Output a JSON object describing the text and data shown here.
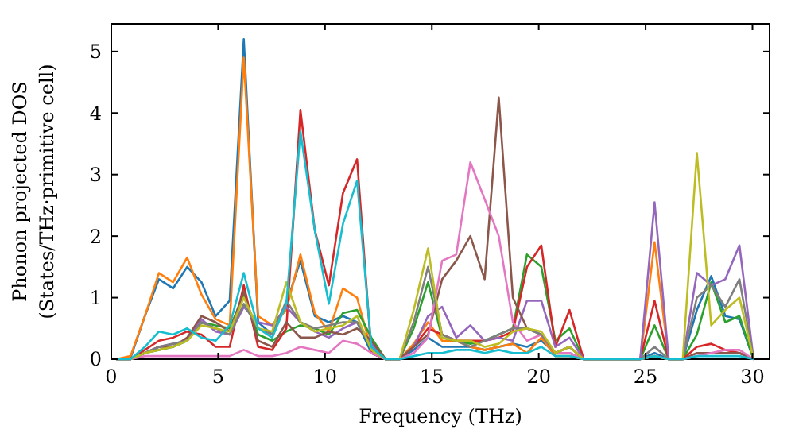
{
  "chart_data": {
    "type": "line",
    "xlabel": "Frequency (THz)",
    "ylabel": "Phonon projected DOS\n(States/THz·primitive cell)",
    "xlim": [
      0,
      30.8
    ],
    "ylim": [
      0,
      5.45
    ],
    "xticks": [
      0,
      5,
      10,
      15,
      20,
      25,
      30
    ],
    "yticks": [
      0,
      1,
      2,
      3,
      4,
      5
    ],
    "grid": false,
    "marker": "none",
    "line_style": "solid",
    "x": [
      0.24,
      0.9,
      1.57,
      2.23,
      2.89,
      3.55,
      4.22,
      4.88,
      5.54,
      6.2,
      6.87,
      7.53,
      8.19,
      8.85,
      9.52,
      10.18,
      10.84,
      11.5,
      12.17,
      12.83,
      13.49,
      14.15,
      14.82,
      15.48,
      16.14,
      16.8,
      17.47,
      18.13,
      18.79,
      19.45,
      20.12,
      20.78,
      21.44,
      22.1,
      22.77,
      23.43,
      24.09,
      24.75,
      25.42,
      26.08,
      26.74,
      27.4,
      28.07,
      28.73,
      29.39,
      30.05
    ],
    "series": [
      {
        "color": "#1f77b4",
        "values": [
          0,
          0.02,
          0.7,
          1.3,
          1.15,
          1.5,
          1.25,
          0.7,
          0.95,
          5.2,
          0.6,
          0.4,
          0.9,
          1.6,
          0.7,
          0.6,
          0.7,
          0.6,
          0.1,
          0,
          0,
          0.15,
          0.35,
          0.2,
          0.2,
          0.2,
          0.15,
          0.2,
          0.25,
          0.2,
          0.3,
          0.1,
          0.1,
          0,
          0,
          0,
          0,
          0,
          0.1,
          0,
          0,
          0.8,
          1.35,
          0.7,
          0.65,
          0
        ]
      },
      {
        "color": "#ff7f0e",
        "values": [
          0,
          0.05,
          0.7,
          1.4,
          1.25,
          1.65,
          1.05,
          0.65,
          0.55,
          4.9,
          0.7,
          0.55,
          0.8,
          1.7,
          0.75,
          0.45,
          1.15,
          1.0,
          0.15,
          0,
          0,
          0.25,
          0.6,
          0.3,
          0.3,
          0.2,
          0.15,
          0.2,
          0.25,
          0.1,
          0.35,
          0.05,
          0.05,
          0,
          0,
          0,
          0,
          0,
          1.9,
          0,
          0,
          null,
          null,
          null,
          null,
          null
        ]
      },
      {
        "color": "#2ca02c",
        "values": [
          0,
          0,
          0.1,
          0.15,
          0.2,
          0.3,
          0.6,
          0.55,
          0.5,
          1.05,
          0.4,
          0.3,
          0.45,
          0.55,
          0.5,
          0.4,
          0.75,
          0.8,
          0.35,
          0,
          0,
          0.5,
          1.25,
          0.35,
          0.3,
          0.25,
          0.3,
          0.4,
          0.5,
          1.7,
          1.5,
          0.3,
          0.5,
          0,
          0,
          0,
          0,
          0,
          0.55,
          0,
          0,
          0.4,
          1.25,
          0.6,
          0.7,
          0
        ]
      },
      {
        "color": "#d62728",
        "values": [
          0,
          0,
          0.15,
          0.3,
          0.35,
          0.45,
          0.4,
          0.2,
          0.2,
          1.2,
          0.2,
          0.15,
          0.5,
          4.05,
          2.1,
          1.2,
          2.7,
          3.25,
          0.1,
          0,
          0,
          0.2,
          0.5,
          0.4,
          0.3,
          0.3,
          0.3,
          0.35,
          0.45,
          1.5,
          1.85,
          0.2,
          0.8,
          0,
          0,
          0,
          0,
          0,
          0.95,
          0,
          0,
          0.2,
          0.25,
          0.15,
          0.1,
          0
        ]
      },
      {
        "color": "#9467bd",
        "values": [
          0,
          0,
          0.1,
          0.2,
          0.25,
          0.3,
          0.65,
          0.45,
          0.4,
          0.85,
          0.6,
          0.55,
          0.85,
          0.6,
          0.45,
          0.35,
          0.5,
          0.6,
          0.25,
          0,
          0,
          0.2,
          0.7,
          0.85,
          0.35,
          0.55,
          0.3,
          0.35,
          0.3,
          0.95,
          0.95,
          0.2,
          0.35,
          0,
          0,
          0,
          0,
          0,
          2.55,
          0,
          0,
          1.4,
          1.2,
          1.3,
          1.85,
          0
        ]
      },
      {
        "color": "#8c564b",
        "values": [
          0,
          0,
          0.1,
          0.2,
          0.2,
          0.35,
          0.7,
          0.6,
          0.45,
          1.1,
          0.3,
          0.2,
          0.6,
          0.35,
          0.35,
          0.45,
          0.4,
          0.5,
          0.3,
          0,
          0,
          0.2,
          0.4,
          1.3,
          1.6,
          2.0,
          1.3,
          4.25,
          1.0,
          0.5,
          0.4,
          0.1,
          0.2,
          0,
          0,
          0,
          0,
          0,
          0.05,
          0,
          0,
          0.1,
          0.1,
          0.1,
          0.1,
          0
        ]
      },
      {
        "color": "#e377c2",
        "values": [
          0,
          0,
          0.05,
          0.05,
          0.05,
          0.05,
          0.05,
          0.05,
          0.05,
          0.15,
          0.05,
          0.05,
          0.1,
          0.2,
          0.15,
          0.1,
          0.3,
          0.25,
          0.1,
          0,
          0,
          0.1,
          0.35,
          1.6,
          1.7,
          3.2,
          2.6,
          2.0,
          0.6,
          0.3,
          0.4,
          0.1,
          0.1,
          0,
          0,
          0,
          0,
          0,
          0.05,
          0,
          0,
          0.05,
          0.1,
          0.15,
          0.15,
          0
        ]
      },
      {
        "color": "#7f7f7f",
        "values": [
          0,
          0,
          0.1,
          0.2,
          0.25,
          0.3,
          0.6,
          0.5,
          0.4,
          0.9,
          0.5,
          0.4,
          0.95,
          0.6,
          0.5,
          0.55,
          0.6,
          0.6,
          0.2,
          0,
          0,
          0.6,
          1.5,
          0.4,
          0.3,
          0.2,
          0.3,
          0.4,
          0.5,
          0.5,
          0.4,
          0.1,
          0.2,
          0,
          0,
          0,
          0,
          0,
          0.2,
          0,
          0,
          1.0,
          1.2,
          0.85,
          1.3,
          0
        ]
      },
      {
        "color": "#bcbd22",
        "values": [
          0,
          0,
          0.1,
          0.15,
          0.2,
          0.3,
          0.55,
          0.5,
          0.45,
          1.0,
          0.5,
          0.45,
          1.25,
          0.6,
          0.45,
          0.5,
          0.55,
          0.7,
          0.15,
          0,
          0,
          0.8,
          1.8,
          0.35,
          0.3,
          0.3,
          0.2,
          0.25,
          0.45,
          0.5,
          0.45,
          0.1,
          0.2,
          0,
          0,
          0,
          0,
          0,
          0.05,
          0,
          0,
          3.35,
          0.55,
          0.8,
          1.0,
          0
        ]
      },
      {
        "color": "#17becf",
        "values": [
          0,
          0,
          0.2,
          0.45,
          0.4,
          0.5,
          0.35,
          0.3,
          0.55,
          1.4,
          0.5,
          0.35,
          0.9,
          3.7,
          2.1,
          0.9,
          2.2,
          2.9,
          0.2,
          0,
          0,
          0.05,
          0.1,
          0.1,
          0.15,
          0.15,
          0.1,
          0.15,
          0.1,
          0.1,
          0.2,
          0.05,
          0.05,
          0,
          0,
          0,
          0,
          0,
          0.05,
          0,
          0,
          0.05,
          0.05,
          0.05,
          0.05,
          0
        ]
      }
    ]
  }
}
